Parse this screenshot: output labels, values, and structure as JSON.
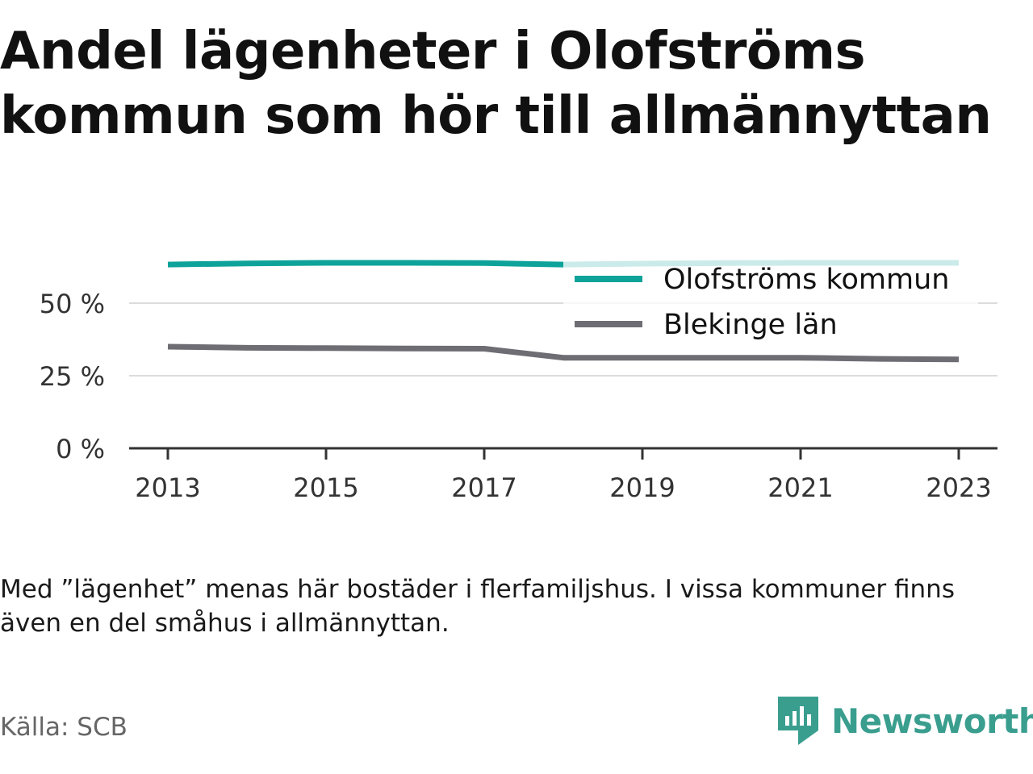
{
  "title_lines": [
    "Andel lägenheter i Olofströms",
    "kommun som hör till allmännyttan"
  ],
  "note_lines": [
    "Med ”lägenhet” menas här bostäder i flerfamiljshus. I vissa kommuner finns",
    "även en del småhus i allmännyttan."
  ],
  "source": "Källa: SCB",
  "brand": {
    "name": "Newsworthy",
    "icon": "newsworthy-logo-icon",
    "color": "#3a9e8f"
  },
  "chart_data": {
    "type": "line",
    "title": "Andel lägenheter i Olofströms kommun som hör till allmännyttan",
    "x": [
      2013,
      2014,
      2015,
      2016,
      2017,
      2018,
      2019,
      2020,
      2021,
      2022,
      2023
    ],
    "x_ticks": [
      2013,
      2015,
      2017,
      2019,
      2021,
      2023
    ],
    "x_tick_labels": [
      "2013",
      "2015",
      "2017",
      "2019",
      "2021",
      "2023"
    ],
    "y_ticks": [
      0,
      25,
      50
    ],
    "y_tick_labels": [
      "0 %",
      "25 %",
      "50 %"
    ],
    "ylim": [
      0,
      65
    ],
    "grid": true,
    "legend_position": "top-right",
    "series": [
      {
        "name": "Olofströms kommun",
        "color": "#0ea39a",
        "values": [
          63.3,
          63.7,
          63.9,
          63.9,
          63.8,
          63.3,
          63.6,
          63.8,
          63.9,
          63.9,
          63.9
        ]
      },
      {
        "name": "Blekinge län",
        "color": "#6e6d74",
        "values": [
          35.0,
          34.6,
          34.5,
          34.4,
          34.3,
          31.2,
          31.2,
          31.2,
          31.2,
          30.8,
          30.6
        ]
      }
    ]
  }
}
